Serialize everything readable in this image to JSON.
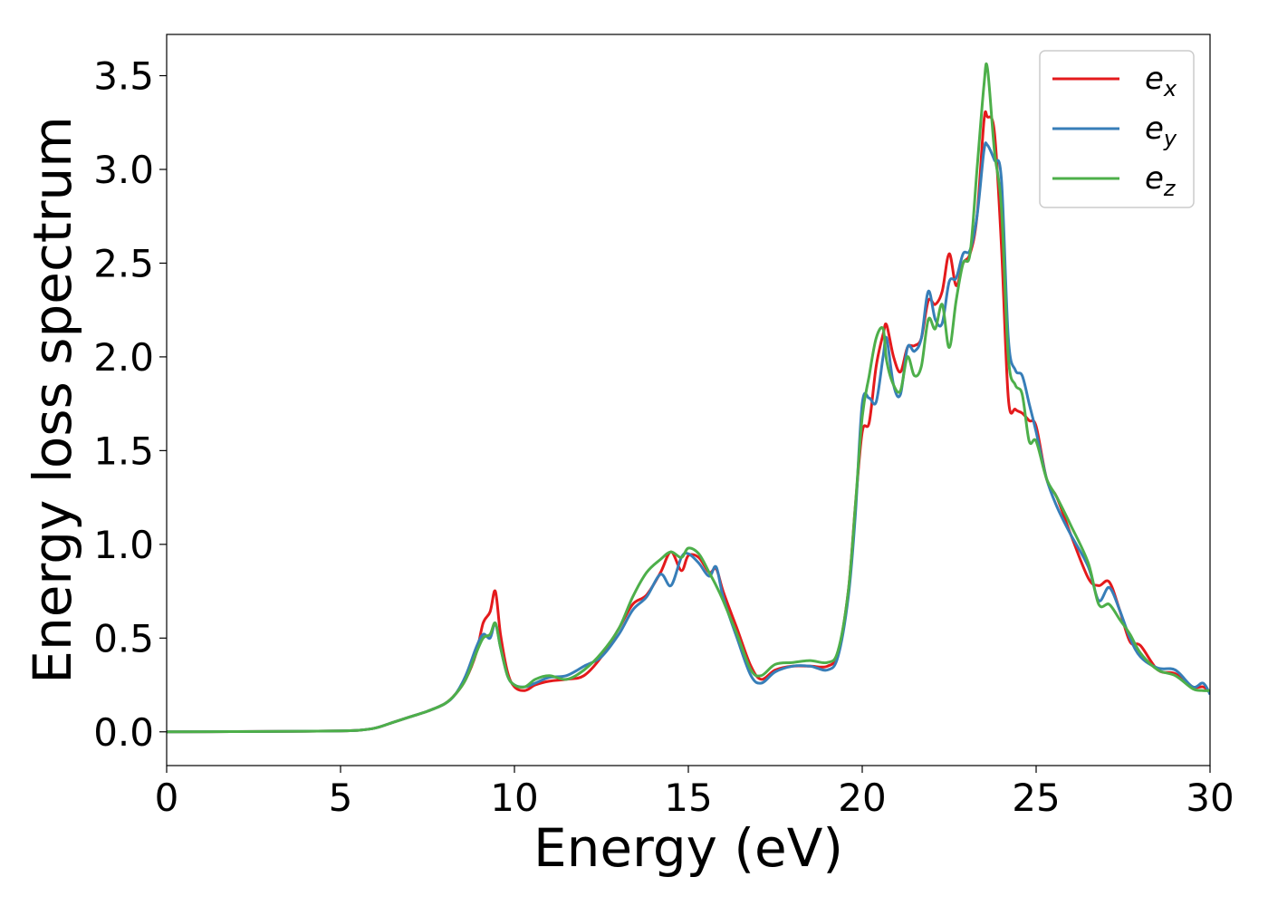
{
  "chart_data": {
    "type": "line",
    "title": "",
    "xlabel": "Energy (eV)",
    "ylabel": "Energy loss spectrum",
    "xlim": [
      0,
      30
    ],
    "ylim": [
      -0.18,
      3.72
    ],
    "xticks": [
      0,
      5,
      10,
      15,
      20,
      25,
      30
    ],
    "xtick_labels": [
      "0",
      "5",
      "10",
      "15",
      "20",
      "25",
      "30"
    ],
    "yticks": [
      0.0,
      0.5,
      1.0,
      1.5,
      2.0,
      2.5,
      3.0,
      3.5
    ],
    "ytick_labels": [
      "0.0",
      "0.5",
      "1.0",
      "1.5",
      "2.0",
      "2.5",
      "3.0",
      "3.5"
    ],
    "grid": false,
    "legend_position": "top-right",
    "series": [
      {
        "name": "e_x",
        "label_base": "e",
        "label_sub": "x",
        "color": "#e41a1c",
        "x": [
          0,
          2,
          4,
          5,
          5.5,
          6,
          6.5,
          7,
          7.5,
          8,
          8.3,
          8.6,
          8.9,
          9.1,
          9.3,
          9.45,
          9.6,
          9.8,
          10.0,
          10.3,
          10.6,
          11.0,
          11.5,
          12.0,
          12.5,
          13.0,
          13.4,
          13.8,
          14.2,
          14.5,
          14.8,
          15.0,
          15.3,
          15.6,
          15.8,
          16.0,
          16.4,
          16.8,
          17.1,
          17.5,
          18.0,
          18.5,
          19.0,
          19.3,
          19.6,
          19.8,
          20.0,
          20.2,
          20.4,
          20.6,
          20.7,
          20.9,
          21.1,
          21.3,
          21.5,
          21.7,
          21.9,
          22.1,
          22.3,
          22.5,
          22.7,
          22.9,
          23.1,
          23.3,
          23.5,
          23.6,
          23.8,
          24.0,
          24.2,
          24.4,
          24.6,
          24.8,
          25.0,
          25.3,
          25.6,
          26.0,
          26.5,
          26.8,
          27.1,
          27.4,
          27.7,
          28.0,
          28.5,
          29.0,
          29.5,
          29.8,
          30.0
        ],
        "y": [
          0,
          0.001,
          0.003,
          0.005,
          0.008,
          0.02,
          0.05,
          0.08,
          0.11,
          0.15,
          0.2,
          0.28,
          0.42,
          0.58,
          0.64,
          0.75,
          0.52,
          0.32,
          0.24,
          0.22,
          0.25,
          0.27,
          0.28,
          0.3,
          0.4,
          0.55,
          0.68,
          0.73,
          0.85,
          0.96,
          0.86,
          0.94,
          0.93,
          0.85,
          0.87,
          0.75,
          0.55,
          0.35,
          0.28,
          0.33,
          0.35,
          0.35,
          0.35,
          0.42,
          0.75,
          1.2,
          1.6,
          1.65,
          1.95,
          2.12,
          2.17,
          2.0,
          1.92,
          2.05,
          2.06,
          2.1,
          2.3,
          2.28,
          2.35,
          2.55,
          2.38,
          2.5,
          2.55,
          2.75,
          3.26,
          3.28,
          3.2,
          2.6,
          1.78,
          1.72,
          1.7,
          1.66,
          1.63,
          1.35,
          1.25,
          1.05,
          0.82,
          0.78,
          0.8,
          0.65,
          0.48,
          0.46,
          0.33,
          0.31,
          0.24,
          0.24,
          0.21
        ]
      },
      {
        "name": "e_y",
        "label_base": "e",
        "label_sub": "y",
        "color": "#377eb8",
        "x": [
          0,
          2,
          4,
          5,
          5.5,
          6,
          6.5,
          7,
          7.5,
          8,
          8.3,
          8.6,
          8.9,
          9.1,
          9.3,
          9.45,
          9.6,
          9.8,
          10.0,
          10.3,
          10.6,
          11.0,
          11.5,
          12.0,
          12.5,
          13.0,
          13.4,
          13.8,
          14.2,
          14.5,
          14.8,
          15.0,
          15.3,
          15.6,
          15.8,
          16.0,
          16.4,
          16.8,
          17.1,
          17.5,
          18.0,
          18.5,
          19.0,
          19.3,
          19.6,
          19.8,
          20.0,
          20.2,
          20.4,
          20.6,
          20.7,
          20.9,
          21.1,
          21.3,
          21.5,
          21.7,
          21.9,
          22.1,
          22.3,
          22.5,
          22.7,
          22.9,
          23.1,
          23.3,
          23.5,
          23.6,
          23.8,
          24.0,
          24.2,
          24.4,
          24.6,
          24.8,
          25.0,
          25.3,
          25.6,
          26.0,
          26.5,
          26.8,
          27.1,
          27.4,
          27.7,
          28.0,
          28.5,
          29.0,
          29.5,
          29.8,
          30.0
        ],
        "y": [
          0,
          0.001,
          0.003,
          0.005,
          0.008,
          0.02,
          0.05,
          0.08,
          0.11,
          0.15,
          0.2,
          0.3,
          0.45,
          0.52,
          0.5,
          0.58,
          0.45,
          0.3,
          0.25,
          0.24,
          0.26,
          0.29,
          0.3,
          0.35,
          0.4,
          0.52,
          0.65,
          0.72,
          0.84,
          0.78,
          0.93,
          0.95,
          0.9,
          0.83,
          0.88,
          0.72,
          0.5,
          0.3,
          0.26,
          0.32,
          0.35,
          0.35,
          0.33,
          0.4,
          0.72,
          1.15,
          1.75,
          1.78,
          1.76,
          2.0,
          2.1,
          1.85,
          1.8,
          2.05,
          2.03,
          2.1,
          2.35,
          2.2,
          2.18,
          2.4,
          2.42,
          2.55,
          2.57,
          2.75,
          3.1,
          3.13,
          3.05,
          2.95,
          2.1,
          1.93,
          1.9,
          1.75,
          1.6,
          1.35,
          1.2,
          1.05,
          0.88,
          0.7,
          0.77,
          0.65,
          0.5,
          0.4,
          0.34,
          0.33,
          0.24,
          0.26,
          0.2
        ]
      },
      {
        "name": "e_z",
        "label_base": "e",
        "label_sub": "z",
        "color": "#4daf4a",
        "x": [
          0,
          2,
          4,
          5,
          5.5,
          6,
          6.5,
          7,
          7.5,
          8,
          8.3,
          8.6,
          8.9,
          9.1,
          9.3,
          9.45,
          9.6,
          9.8,
          10.0,
          10.3,
          10.6,
          11.0,
          11.5,
          12.0,
          12.5,
          13.0,
          13.4,
          13.8,
          14.2,
          14.5,
          14.8,
          15.0,
          15.3,
          15.6,
          15.8,
          16.0,
          16.4,
          16.8,
          17.1,
          17.5,
          18.0,
          18.5,
          19.0,
          19.3,
          19.6,
          19.8,
          20.0,
          20.2,
          20.4,
          20.6,
          20.7,
          20.9,
          21.1,
          21.3,
          21.5,
          21.7,
          21.9,
          22.1,
          22.3,
          22.5,
          22.7,
          22.9,
          23.1,
          23.3,
          23.5,
          23.6,
          23.8,
          24.0,
          24.2,
          24.4,
          24.6,
          24.8,
          25.0,
          25.3,
          25.6,
          26.0,
          26.5,
          26.8,
          27.1,
          27.4,
          27.7,
          28.0,
          28.5,
          29.0,
          29.5,
          29.8,
          30.0
        ],
        "y": [
          0,
          0.001,
          0.003,
          0.005,
          0.008,
          0.02,
          0.05,
          0.08,
          0.11,
          0.15,
          0.2,
          0.28,
          0.42,
          0.5,
          0.52,
          0.58,
          0.45,
          0.3,
          0.25,
          0.24,
          0.28,
          0.3,
          0.28,
          0.33,
          0.42,
          0.55,
          0.72,
          0.85,
          0.92,
          0.96,
          0.93,
          0.98,
          0.95,
          0.85,
          0.78,
          0.7,
          0.52,
          0.33,
          0.3,
          0.36,
          0.37,
          0.38,
          0.37,
          0.43,
          0.75,
          1.2,
          1.68,
          1.9,
          2.1,
          2.15,
          1.98,
          1.85,
          1.82,
          2.0,
          1.9,
          1.95,
          2.2,
          2.15,
          2.28,
          2.05,
          2.3,
          2.5,
          2.55,
          3.0,
          3.45,
          3.54,
          3.1,
          2.8,
          2.0,
          1.85,
          1.8,
          1.55,
          1.55,
          1.35,
          1.25,
          1.1,
          0.9,
          0.68,
          0.68,
          0.6,
          0.52,
          0.42,
          0.33,
          0.3,
          0.23,
          0.22,
          0.22
        ]
      }
    ]
  }
}
